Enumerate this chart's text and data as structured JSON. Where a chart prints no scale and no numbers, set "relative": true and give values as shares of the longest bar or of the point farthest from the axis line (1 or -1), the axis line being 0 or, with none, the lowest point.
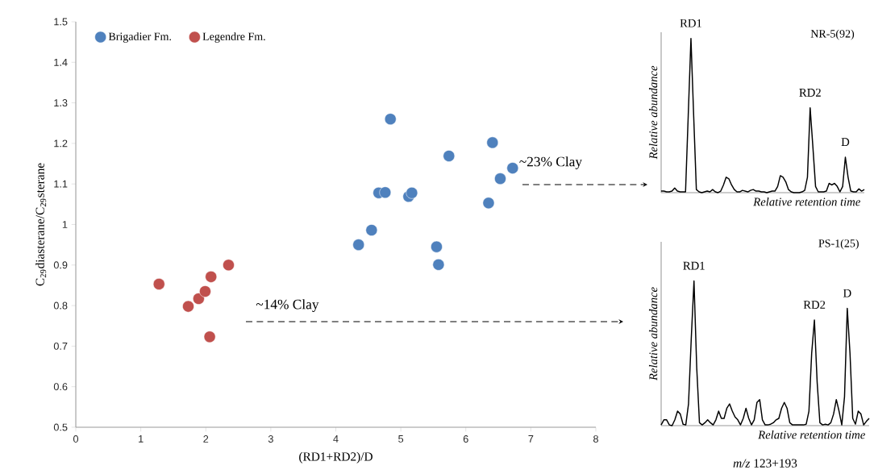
{
  "chart_data": [
    {
      "type": "scatter",
      "xlabel": "(RD1+RD2)/D",
      "ylabel": "C$_{29}$diasterane/C$_{29}$sterane",
      "xlim": [
        0,
        8
      ],
      "ylim": [
        0.5,
        1.5
      ],
      "xticks": [
        0,
        1,
        2,
        3,
        4,
        5,
        6,
        7,
        8
      ],
      "yticks": [
        0.5,
        0.6,
        0.7,
        0.8,
        0.9,
        1,
        1.1,
        1.2,
        1.3,
        1.4,
        1.5
      ],
      "marker": "circle",
      "legend": "top left",
      "annotations": [
        "~23% Clay",
        "~14% Clay"
      ],
      "series": [
        {
          "name": "Brigadier Fm.",
          "color": "#4f81bd",
          "x": [
            4.84,
            6.41,
            5.74,
            6.72,
            6.53,
            4.66,
            4.76,
            5.12,
            5.17,
            6.35,
            4.55,
            4.35,
            5.55,
            5.58
          ],
          "values": [
            1.26,
            1.202,
            1.169,
            1.139,
            1.113,
            1.078,
            1.079,
            1.069,
            1.078,
            1.053,
            0.986,
            0.95,
            0.945,
            0.901
          ]
        },
        {
          "name": "Legendre Fm.",
          "color": "#c0504d",
          "x": [
            1.28,
            1.73,
            1.89,
            1.99,
            2.08,
            2.35,
            2.06
          ],
          "values": [
            0.853,
            0.798,
            0.817,
            0.835,
            0.871,
            0.9,
            0.723
          ]
        }
      ]
    },
    {
      "type": "line",
      "relative": true,
      "title": "NR-5(92)",
      "xlabel": "Relative retention time",
      "ylabel": "Relative abundance",
      "annotations": [
        "RD1",
        "RD2",
        "D"
      ],
      "categories": [
        null,
        null,
        null,
        null,
        null,
        null,
        null,
        null,
        null,
        null,
        null,
        null,
        null,
        null,
        null,
        null,
        null,
        null,
        null,
        null,
        null,
        null,
        null,
        null,
        null,
        null,
        null,
        null,
        null,
        null,
        null,
        null,
        null,
        null,
        null,
        null,
        null,
        null,
        null,
        null,
        null,
        null,
        null,
        null,
        null,
        null,
        null,
        null,
        null,
        null,
        null,
        null,
        null,
        null,
        null,
        null,
        null,
        null,
        null,
        null,
        null,
        null,
        null,
        null,
        null,
        null,
        null,
        null,
        null,
        null,
        null,
        null,
        null,
        null,
        null,
        null
      ],
      "series": [
        {
          "color": "#000000",
          "values": [
            0.01,
            0.01,
            0.005,
            0.005,
            0.01,
            0.03,
            0.01,
            0.005,
            0.005,
            0.005,
            0.5,
            1.0,
            0.5,
            0.02,
            0.005,
            0,
            0.005,
            0.01,
            0.005,
            0.02,
            0.005,
            0,
            0.01,
            0.05,
            0.1,
            0.09,
            0.05,
            0.02,
            0.005,
            0.005,
            0.015,
            0.01,
            0.005,
            0.015,
            0.02,
            0.01,
            0.01,
            0.005,
            0.005,
            0,
            0.005,
            0.01,
            0.01,
            0.04,
            0.11,
            0.1,
            0.07,
            0.02,
            0.005,
            0,
            0,
            0,
            0.005,
            0.015,
            0.1,
            0.55,
            0.3,
            0.04,
            0.005,
            0.005,
            0.005,
            0.01,
            0.06,
            0.05,
            0.06,
            0.04,
            0.005,
            0.04,
            0.23,
            0.1,
            0.01,
            0.005,
            0.005,
            0.025,
            0.01,
            0.02
          ]
        }
      ]
    },
    {
      "type": "line",
      "relative": true,
      "title": "PS-1(25)",
      "xlabel": "Relative retention time",
      "ylabel": "Relative abundance",
      "annotations": [
        "RD1",
        "RD2",
        "D",
        "*m/z* 123+193"
      ],
      "categories": [
        null,
        null,
        null,
        null,
        null,
        null,
        null,
        null,
        null,
        null,
        null,
        null,
        null,
        null,
        null,
        null,
        null,
        null,
        null,
        null,
        null,
        null,
        null,
        null,
        null,
        null,
        null,
        null,
        null,
        null,
        null,
        null,
        null,
        null,
        null,
        null,
        null,
        null,
        null,
        null,
        null,
        null,
        null,
        null,
        null,
        null,
        null,
        null,
        null,
        null,
        null,
        null,
        null,
        null,
        null,
        null,
        null,
        null,
        null,
        null,
        null,
        null,
        null,
        null,
        null,
        null,
        null,
        null,
        null,
        null,
        null,
        null,
        null,
        null,
        null,
        null,
        null
      ],
      "series": [
        {
          "color": "#000000",
          "values": [
            0.005,
            0.04,
            0.04,
            0.005,
            0,
            0.04,
            0.1,
            0.08,
            0.01,
            0.005,
            0.15,
            0.6,
            1.0,
            0.4,
            0.02,
            0.005,
            0.02,
            0.04,
            0.02,
            0.005,
            0.04,
            0.1,
            0.05,
            0.05,
            0.12,
            0.15,
            0.1,
            0.06,
            0.04,
            0.005,
            0.05,
            0.12,
            0.05,
            0.005,
            0.04,
            0.16,
            0.18,
            0.04,
            0.005,
            0.005,
            0.01,
            0.02,
            0.04,
            0.05,
            0.12,
            0.16,
            0.12,
            0.02,
            0.005,
            0.005,
            0.005,
            0.005,
            0.005,
            0.01,
            0.1,
            0.5,
            0.73,
            0.3,
            0.02,
            0.005,
            0.01,
            0.005,
            0.02,
            0.08,
            0.18,
            0.1,
            0.005,
            0.2,
            0.81,
            0.5,
            0.05,
            0.01,
            0.1,
            0.08,
            0.005,
            0.03,
            0.05
          ]
        }
      ]
    }
  ]
}
